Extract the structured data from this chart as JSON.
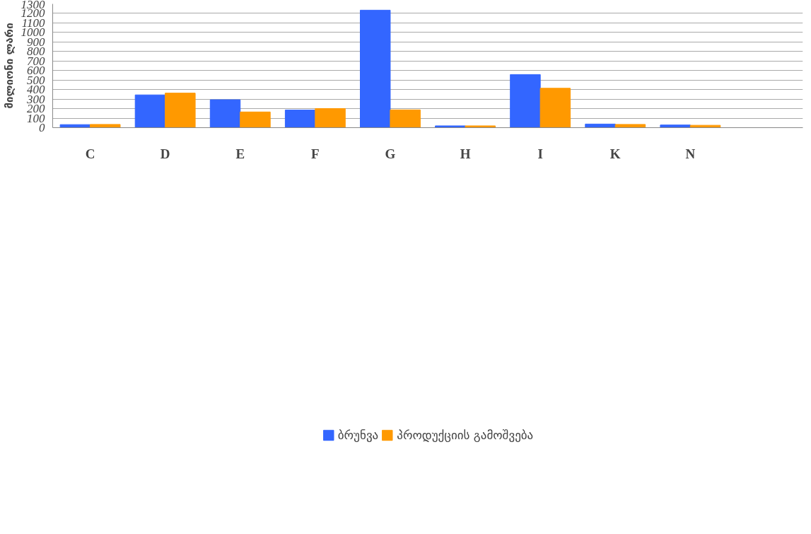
{
  "chart_data": {
    "type": "bar",
    "ylabel": "მილიონი ლარი",
    "categories": [
      "C",
      "D",
      "E",
      "F",
      "G",
      "H",
      "I",
      "K",
      "N",
      null
    ],
    "series": [
      {
        "name": "ბრუნვა",
        "color": "#3366ff",
        "values": [
          32,
          344,
          293,
          185,
          1234,
          19,
          558,
          38,
          28,
          null
        ]
      },
      {
        "name": "პროდუქციის გამოშვება",
        "color": "#ff9900",
        "values": [
          34,
          363,
          165,
          201,
          187,
          19,
          414,
          34,
          25,
          null
        ]
      }
    ],
    "ylim": [
      0,
      1300
    ],
    "yticks": [
      0,
      100,
      200,
      300,
      400,
      500,
      600,
      700,
      800,
      900,
      1000,
      1100,
      1200,
      1300
    ],
    "grid": "y",
    "legend": "bottom"
  }
}
